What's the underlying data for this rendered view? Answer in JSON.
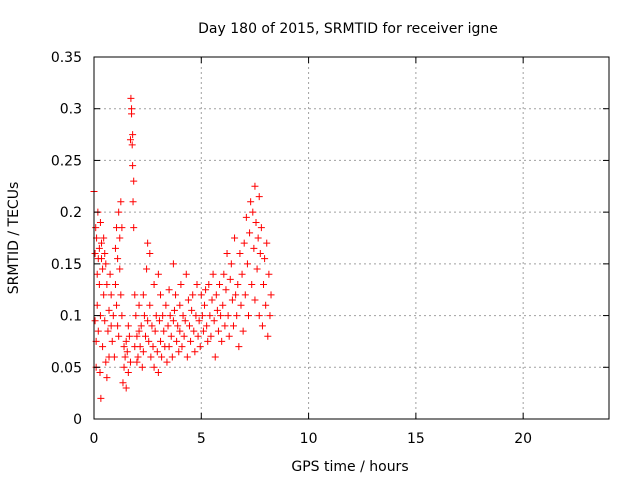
{
  "chart_data": {
    "type": "scatter",
    "title": "Day 180 of 2015, SRMTID for receiver igne",
    "xlabel": "GPS time / hours",
    "ylabel": "SRMTID / TECUs",
    "xlim": [
      0,
      24
    ],
    "ylim": [
      0,
      0.35
    ],
    "x_ticks": [
      "0",
      "5",
      "10",
      "15",
      "20"
    ],
    "y_ticks": [
      "0",
      "0.05",
      "0.1",
      "0.15",
      "0.2",
      "0.25",
      "0.3",
      "0.35"
    ],
    "grid": true,
    "marker": "+",
    "color": "#ff0000",
    "series": [
      {
        "points": [
          [
            0.0,
            0.22
          ],
          [
            0.05,
            0.16
          ],
          [
            0.05,
            0.095
          ],
          [
            0.08,
            0.185
          ],
          [
            0.1,
            0.05
          ],
          [
            0.1,
            0.075
          ],
          [
            0.12,
            0.175
          ],
          [
            0.15,
            0.14
          ],
          [
            0.15,
            0.11
          ],
          [
            0.18,
            0.2
          ],
          [
            0.2,
            0.155
          ],
          [
            0.2,
            0.085
          ],
          [
            0.25,
            0.165
          ],
          [
            0.25,
            0.13
          ],
          [
            0.28,
            0.045
          ],
          [
            0.3,
            0.19
          ],
          [
            0.3,
            0.1
          ],
          [
            0.32,
            0.02
          ],
          [
            0.35,
            0.17
          ],
          [
            0.35,
            0.155
          ],
          [
            0.4,
            0.145
          ],
          [
            0.4,
            0.07
          ],
          [
            0.45,
            0.175
          ],
          [
            0.45,
            0.12
          ],
          [
            0.5,
            0.16
          ],
          [
            0.5,
            0.095
          ],
          [
            0.55,
            0.15
          ],
          [
            0.55,
            0.055
          ],
          [
            0.6,
            0.13
          ],
          [
            0.6,
            0.04
          ],
          [
            0.65,
            0.085
          ],
          [
            0.7,
            0.105
          ],
          [
            0.7,
            0.06
          ],
          [
            0.75,
            0.14
          ],
          [
            0.8,
            0.09
          ],
          [
            0.8,
            0.12
          ],
          [
            0.85,
            0.075
          ],
          [
            0.9,
            0.1
          ],
          [
            0.95,
            0.06
          ],
          [
            1.0,
            0.165
          ],
          [
            1.0,
            0.13
          ],
          [
            1.05,
            0.185
          ],
          [
            1.05,
            0.11
          ],
          [
            1.1,
            0.155
          ],
          [
            1.1,
            0.09
          ],
          [
            1.15,
            0.2
          ],
          [
            1.15,
            0.08
          ],
          [
            1.2,
            0.175
          ],
          [
            1.2,
            0.145
          ],
          [
            1.25,
            0.21
          ],
          [
            1.25,
            0.12
          ],
          [
            1.3,
            0.185
          ],
          [
            1.3,
            0.1
          ],
          [
            1.35,
            0.035
          ],
          [
            1.4,
            0.07
          ],
          [
            1.4,
            0.05
          ],
          [
            1.45,
            0.06
          ],
          [
            1.5,
            0.075
          ],
          [
            1.5,
            0.03
          ],
          [
            1.55,
            0.065
          ],
          [
            1.6,
            0.09
          ],
          [
            1.6,
            0.045
          ],
          [
            1.65,
            0.08
          ],
          [
            1.7,
            0.27
          ],
          [
            1.7,
            0.055
          ],
          [
            1.72,
            0.31
          ],
          [
            1.75,
            0.295
          ],
          [
            1.75,
            0.3
          ],
          [
            1.78,
            0.265
          ],
          [
            1.8,
            0.245
          ],
          [
            1.8,
            0.275
          ],
          [
            1.82,
            0.21
          ],
          [
            1.85,
            0.23
          ],
          [
            1.85,
            0.185
          ],
          [
            1.9,
            0.12
          ],
          [
            1.9,
            0.07
          ],
          [
            1.95,
            0.1
          ],
          [
            2.0,
            0.08
          ],
          [
            2.0,
            0.055
          ],
          [
            2.05,
            0.06
          ],
          [
            2.1,
            0.11
          ],
          [
            2.1,
            0.085
          ],
          [
            2.15,
            0.07
          ],
          [
            2.2,
            0.09
          ],
          [
            2.25,
            0.05
          ],
          [
            2.3,
            0.12
          ],
          [
            2.3,
            0.065
          ],
          [
            2.35,
            0.1
          ],
          [
            2.4,
            0.08
          ],
          [
            2.45,
            0.145
          ],
          [
            2.5,
            0.17
          ],
          [
            2.5,
            0.095
          ],
          [
            2.55,
            0.075
          ],
          [
            2.6,
            0.16
          ],
          [
            2.6,
            0.11
          ],
          [
            2.65,
            0.06
          ],
          [
            2.7,
            0.09
          ],
          [
            2.75,
            0.07
          ],
          [
            2.8,
            0.13
          ],
          [
            2.8,
            0.05
          ],
          [
            2.85,
            0.085
          ],
          [
            2.9,
            0.1
          ],
          [
            2.95,
            0.065
          ],
          [
            3.0,
            0.14
          ],
          [
            3.0,
            0.045
          ],
          [
            3.05,
            0.095
          ],
          [
            3.1,
            0.12
          ],
          [
            3.1,
            0.075
          ],
          [
            3.15,
            0.06
          ],
          [
            3.2,
            0.1
          ],
          [
            3.25,
            0.085
          ],
          [
            3.3,
            0.07
          ],
          [
            3.35,
            0.11
          ],
          [
            3.4,
            0.055
          ],
          [
            3.45,
            0.09
          ],
          [
            3.5,
            0.125
          ],
          [
            3.5,
            0.07
          ],
          [
            3.55,
            0.1
          ],
          [
            3.6,
            0.08
          ],
          [
            3.65,
            0.06
          ],
          [
            3.7,
            0.15
          ],
          [
            3.7,
            0.095
          ],
          [
            3.75,
            0.105
          ],
          [
            3.8,
            0.12
          ],
          [
            3.85,
            0.075
          ],
          [
            3.9,
            0.09
          ],
          [
            3.95,
            0.065
          ],
          [
            4.0,
            0.11
          ],
          [
            4.0,
            0.085
          ],
          [
            4.05,
            0.13
          ],
          [
            4.1,
            0.07
          ],
          [
            4.15,
            0.1
          ],
          [
            4.2,
            0.08
          ],
          [
            4.25,
            0.095
          ],
          [
            4.3,
            0.14
          ],
          [
            4.35,
            0.06
          ],
          [
            4.4,
            0.115
          ],
          [
            4.45,
            0.09
          ],
          [
            4.5,
            0.075
          ],
          [
            4.55,
            0.105
          ],
          [
            4.6,
            0.12
          ],
          [
            4.65,
            0.085
          ],
          [
            4.7,
            0.065
          ],
          [
            4.75,
            0.1
          ],
          [
            4.8,
            0.13
          ],
          [
            4.85,
            0.08
          ],
          [
            4.9,
            0.095
          ],
          [
            4.95,
            0.07
          ],
          [
            5.0,
            0.12
          ],
          [
            5.05,
            0.1
          ],
          [
            5.1,
            0.085
          ],
          [
            5.15,
            0.11
          ],
          [
            5.2,
            0.125
          ],
          [
            5.25,
            0.09
          ],
          [
            5.3,
            0.075
          ],
          [
            5.35,
            0.13
          ],
          [
            5.4,
            0.1
          ],
          [
            5.45,
            0.08
          ],
          [
            5.5,
            0.115
          ],
          [
            5.55,
            0.14
          ],
          [
            5.6,
            0.095
          ],
          [
            5.65,
            0.06
          ],
          [
            5.7,
            0.12
          ],
          [
            5.75,
            0.105
          ],
          [
            5.8,
            0.085
          ],
          [
            5.85,
            0.13
          ],
          [
            5.9,
            0.1
          ],
          [
            5.95,
            0.075
          ],
          [
            6.0,
            0.11
          ],
          [
            6.05,
            0.14
          ],
          [
            6.1,
            0.09
          ],
          [
            6.15,
            0.125
          ],
          [
            6.2,
            0.16
          ],
          [
            6.25,
            0.1
          ],
          [
            6.3,
            0.08
          ],
          [
            6.35,
            0.135
          ],
          [
            6.4,
            0.15
          ],
          [
            6.45,
            0.115
          ],
          [
            6.5,
            0.09
          ],
          [
            6.55,
            0.175
          ],
          [
            6.6,
            0.12
          ],
          [
            6.65,
            0.1
          ],
          [
            6.7,
            0.13
          ],
          [
            6.75,
            0.07
          ],
          [
            6.8,
            0.16
          ],
          [
            6.85,
            0.11
          ],
          [
            6.9,
            0.14
          ],
          [
            6.95,
            0.085
          ],
          [
            7.0,
            0.17
          ],
          [
            7.05,
            0.12
          ],
          [
            7.1,
            0.195
          ],
          [
            7.15,
            0.15
          ],
          [
            7.2,
            0.1
          ],
          [
            7.25,
            0.18
          ],
          [
            7.3,
            0.21
          ],
          [
            7.35,
            0.13
          ],
          [
            7.4,
            0.2
          ],
          [
            7.45,
            0.165
          ],
          [
            7.5,
            0.225
          ],
          [
            7.5,
            0.115
          ],
          [
            7.55,
            0.19
          ],
          [
            7.6,
            0.145
          ],
          [
            7.65,
            0.175
          ],
          [
            7.7,
            0.215
          ],
          [
            7.7,
            0.1
          ],
          [
            7.75,
            0.16
          ],
          [
            7.8,
            0.185
          ],
          [
            7.85,
            0.09
          ],
          [
            7.9,
            0.13
          ],
          [
            7.95,
            0.155
          ],
          [
            8.0,
            0.11
          ],
          [
            8.05,
            0.17
          ],
          [
            8.1,
            0.08
          ],
          [
            8.15,
            0.14
          ],
          [
            8.2,
            0.1
          ],
          [
            8.25,
            0.12
          ]
        ]
      }
    ]
  }
}
